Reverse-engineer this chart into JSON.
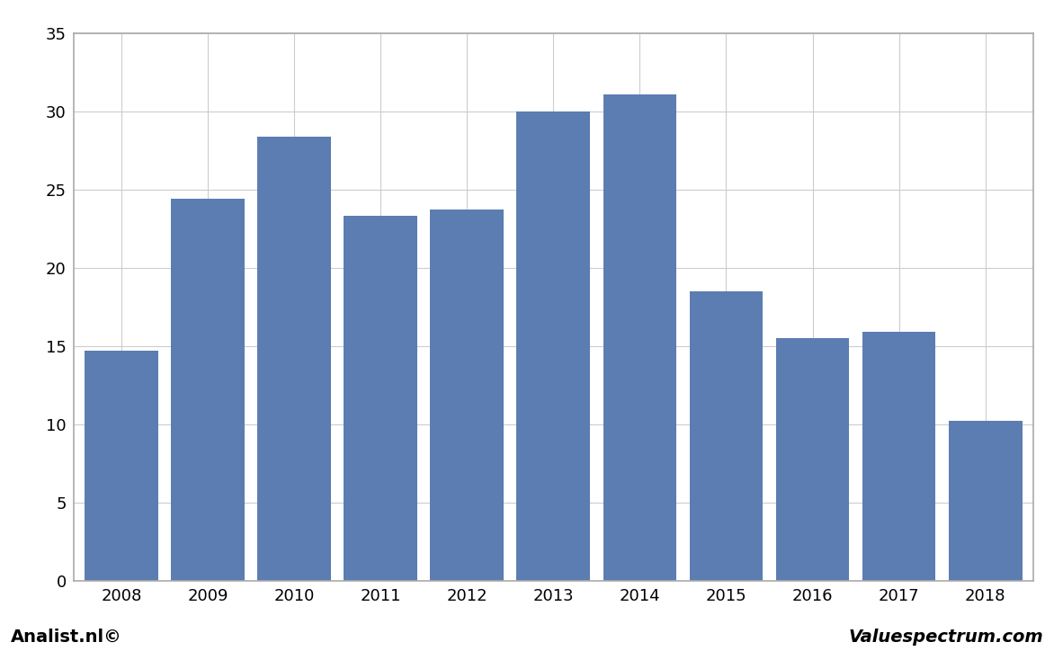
{
  "categories": [
    "2008",
    "2009",
    "2010",
    "2011",
    "2012",
    "2013",
    "2014",
    "2015",
    "2016",
    "2017",
    "2018"
  ],
  "values": [
    14.7,
    24.4,
    28.4,
    23.3,
    23.7,
    30.0,
    31.1,
    18.5,
    15.5,
    15.9,
    10.2
  ],
  "bar_color": "#5B7DB1",
  "ylim": [
    0,
    35
  ],
  "yticks": [
    0,
    5,
    10,
    15,
    20,
    25,
    30,
    35
  ],
  "background_color": "#FFFFFF",
  "plot_area_color": "#FFFFFF",
  "footer_bg_color": "#D3D3D3",
  "grid_color": "#CCCCCC",
  "footer_left": "Analist.nl©",
  "footer_right": "Valuespectrum.com",
  "border_color": "#AAAAAA"
}
